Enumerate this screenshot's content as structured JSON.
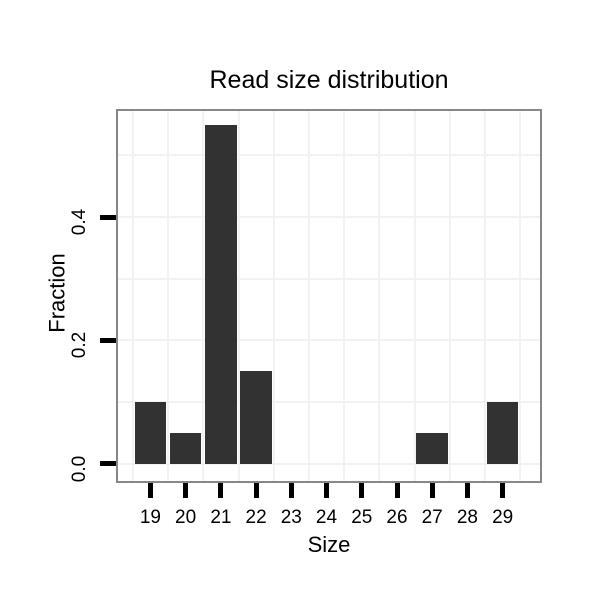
{
  "chart_data": {
    "type": "bar",
    "title": "Read size distribution",
    "xlabel": "Size",
    "ylabel": "Fraction",
    "categories": [
      19,
      20,
      21,
      22,
      23,
      24,
      25,
      26,
      27,
      28,
      29
    ],
    "values": [
      0.1,
      0.05,
      0.55,
      0.15,
      0,
      0,
      0,
      0,
      0.05,
      0,
      0.1
    ],
    "bar_width_units": 0.9,
    "xlim": [
      18.08,
      30.06
    ],
    "ylim": [
      -0.028,
      0.572
    ],
    "yticks": [
      0.0,
      0.2,
      0.4
    ],
    "ytick_labels": [
      "0.0",
      "0.2",
      "0.4"
    ],
    "xtick_labels": [
      "19",
      "20",
      "21",
      "22",
      "23",
      "24",
      "25",
      "26",
      "27",
      "28",
      "29"
    ],
    "grid": {
      "hlines": [
        0,
        0.1,
        0.2,
        0.3,
        0.4,
        0.5
      ],
      "vlines": [
        18.5,
        19.5,
        20.5,
        21.5,
        22.5,
        23.5,
        24.5,
        25.5,
        26.5,
        27.5,
        28.5,
        29.5
      ]
    },
    "legend": null,
    "colors": {
      "bar": "#323232",
      "plot_border": "#878787",
      "grid": "#f2f2f2",
      "tick": "#000000",
      "text": "#000000",
      "background": "#ffffff"
    }
  }
}
